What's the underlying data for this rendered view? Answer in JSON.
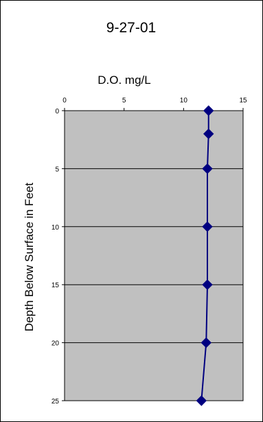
{
  "chart_data": {
    "type": "line",
    "title": "9-27-01",
    "xlabel": "D.O. mg/L",
    "ylabel": "Depth Below Surface in Feet",
    "x_axis_position": "top",
    "y_axis_reversed": true,
    "xlim": [
      0,
      15
    ],
    "ylim": [
      0,
      25
    ],
    "x_ticks": [
      0,
      5,
      10,
      15
    ],
    "y_ticks": [
      0,
      5,
      10,
      15,
      20,
      25
    ],
    "grid": "horizontal",
    "series": [
      {
        "name": "",
        "color": "#000080",
        "marker": "diamond",
        "points": [
          {
            "x": 12.1,
            "y": 0
          },
          {
            "x": 12.1,
            "y": 2
          },
          {
            "x": 12.0,
            "y": 5
          },
          {
            "x": 12.0,
            "y": 10
          },
          {
            "x": 12.0,
            "y": 15
          },
          {
            "x": 11.9,
            "y": 20
          },
          {
            "x": 11.5,
            "y": 25
          }
        ]
      }
    ],
    "plot_background": "#c0c0c0"
  }
}
